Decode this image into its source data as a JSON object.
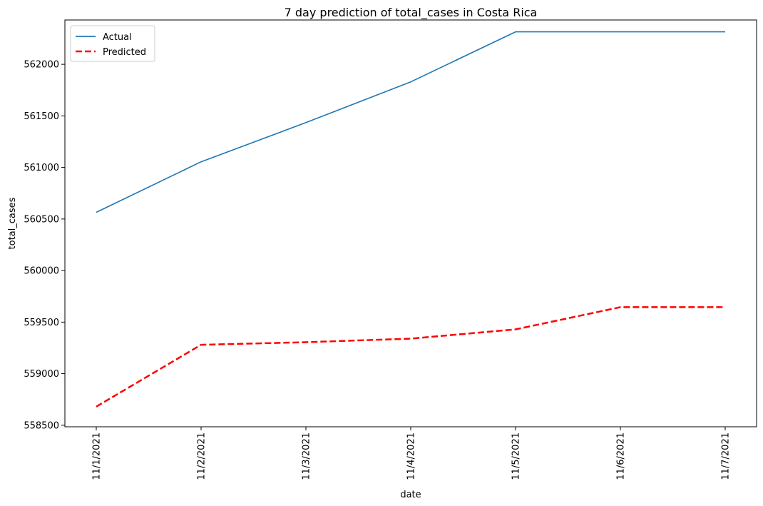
{
  "chart_data": {
    "type": "line",
    "title": "7 day prediction of total_cases in Costa Rica",
    "xlabel": "date",
    "ylabel": "total_cases",
    "categories": [
      "11/1/2021",
      "11/2/2021",
      "11/3/2021",
      "11/4/2021",
      "11/5/2021",
      "11/6/2021",
      "11/7/2021"
    ],
    "ylim": [
      558485,
      562430
    ],
    "yticks": [
      558500,
      559000,
      559500,
      560000,
      560500,
      561000,
      561500,
      562000
    ],
    "grid": false,
    "legend_position": "top-left",
    "series": [
      {
        "name": "Actual",
        "color": "#1f77b4",
        "style": "solid",
        "values": [
          560565,
          561055,
          561435,
          561830,
          562315,
          562315,
          562315
        ]
      },
      {
        "name": "Predicted",
        "color": "#ff0000",
        "style": "dashed",
        "values": [
          558680,
          559280,
          559305,
          559340,
          559430,
          559645,
          559645
        ]
      }
    ]
  }
}
